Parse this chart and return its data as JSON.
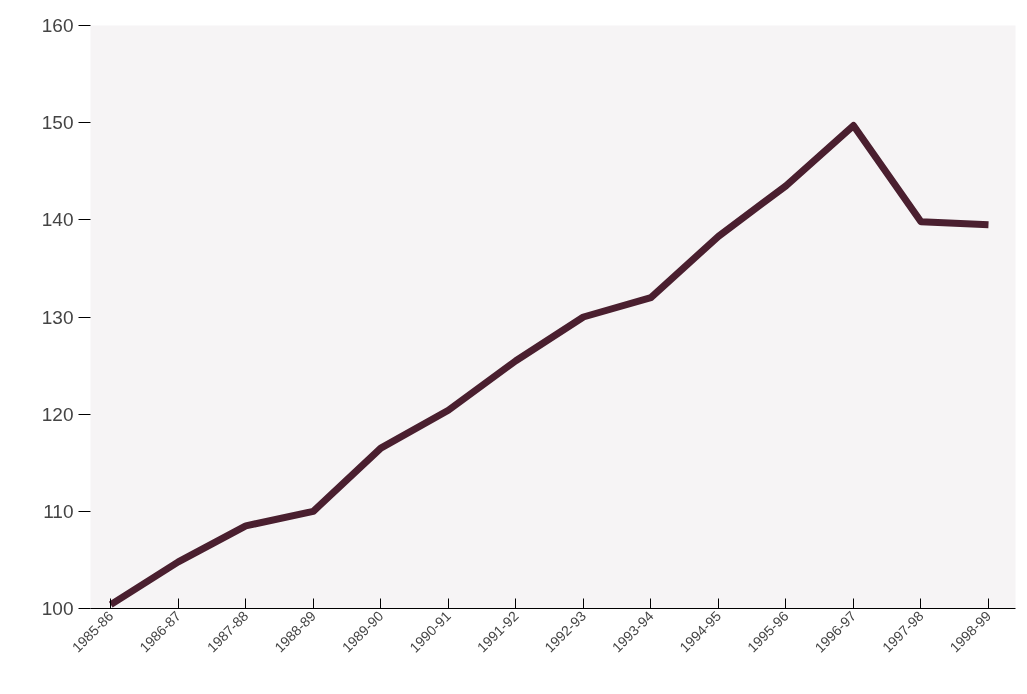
{
  "chart_data": {
    "type": "line",
    "categories": [
      "1985-86",
      "1986-87",
      "1987-88",
      "1988-89",
      "1989-90",
      "1990-91",
      "1991-92",
      "1992-93",
      "1993-94",
      "1994-95",
      "1995-96",
      "1996-97",
      "1997-98",
      "1998-99"
    ],
    "series": [
      {
        "color": "#4a1f2f",
        "values": [
          100.4,
          104.8,
          108.5,
          110,
          116.5,
          120.4,
          125.5,
          130,
          132,
          138.3,
          143.5,
          149.7,
          139.8,
          139.5
        ]
      }
    ],
    "ylim": [
      100,
      160
    ],
    "yticks": [
      100,
      110,
      120,
      130,
      140,
      150,
      160
    ],
    "grid": false,
    "marker": "none",
    "line_style": "solid"
  }
}
